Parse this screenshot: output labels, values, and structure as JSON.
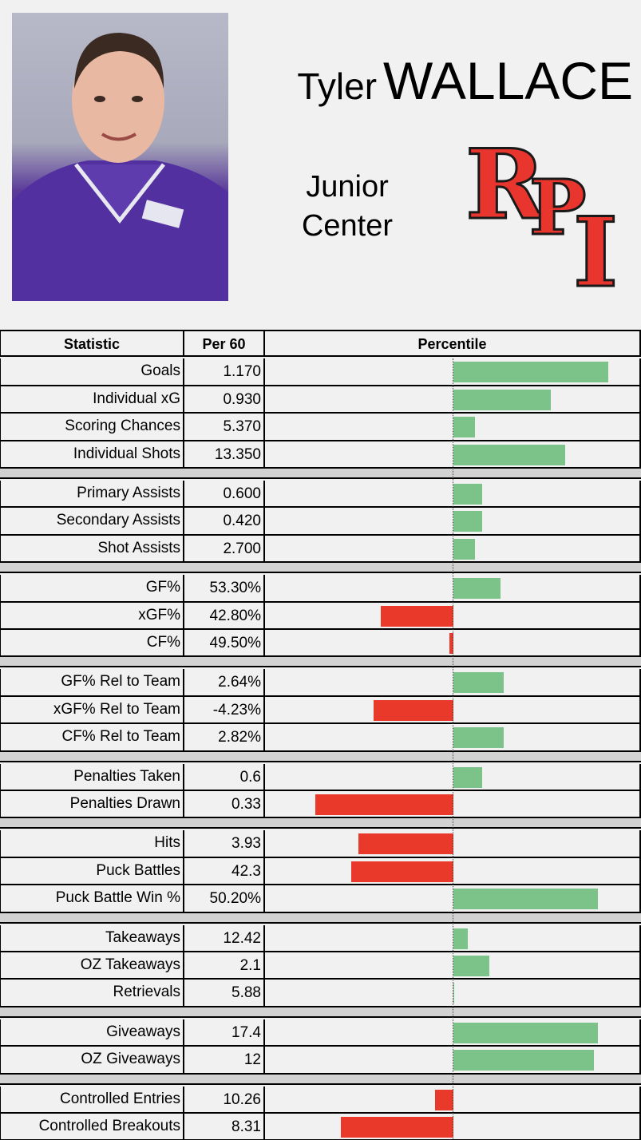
{
  "player": {
    "first_name": "Tyler",
    "last_name": "WALLACE",
    "year": "Junior",
    "position": "Center",
    "team_logo_text": "RPI"
  },
  "table": {
    "headers": [
      "Statistic",
      "Per 60",
      "Percentile"
    ]
  },
  "chart_data": {
    "type": "bar",
    "orientation": "horizontal",
    "columns": [
      "Statistic",
      "Per 60",
      "Percentile"
    ],
    "percentile_range": [
      0,
      100
    ],
    "midpoint": 50,
    "colors": {
      "above": "#7cc38a",
      "below": "#e8392b"
    },
    "groups": [
      [
        {
          "stat": "Goals",
          "per60": "1.170",
          "percentile": 93
        },
        {
          "stat": "Individual xG",
          "per60": "0.930",
          "percentile": 77
        },
        {
          "stat": "Scoring Chances",
          "per60": "5.370",
          "percentile": 56
        },
        {
          "stat": "Individual Shots",
          "per60": "13.350",
          "percentile": 81
        }
      ],
      [
        {
          "stat": "Primary Assists",
          "per60": "0.600",
          "percentile": 58
        },
        {
          "stat": "Secondary Assists",
          "per60": "0.420",
          "percentile": 58
        },
        {
          "stat": "Shot Assists",
          "per60": "2.700",
          "percentile": 56
        }
      ],
      [
        {
          "stat": "GF%",
          "per60": "53.30%",
          "percentile": 63
        },
        {
          "stat": "xGF%",
          "per60": "42.80%",
          "percentile": 30
        },
        {
          "stat": "CF%",
          "per60": "49.50%",
          "percentile": 49
        }
      ],
      [
        {
          "stat": "GF% Rel to Team",
          "per60": "2.64%",
          "percentile": 64
        },
        {
          "stat": "xGF% Rel to Team",
          "per60": "-4.23%",
          "percentile": 28
        },
        {
          "stat": "CF% Rel to Team",
          "per60": "2.82%",
          "percentile": 64
        }
      ],
      [
        {
          "stat": "Penalties Taken",
          "per60": "0.6",
          "percentile": 58
        },
        {
          "stat": "Penalties Drawn",
          "per60": "0.33",
          "percentile": 12
        }
      ],
      [
        {
          "stat": "Hits",
          "per60": "3.93",
          "percentile": 24
        },
        {
          "stat": "Puck Battles",
          "per60": "42.3",
          "percentile": 22
        },
        {
          "stat": "Puck Battle Win %",
          "per60": "50.20%",
          "percentile": 90
        }
      ],
      [
        {
          "stat": "Takeaways",
          "per60": "12.42",
          "percentile": 54
        },
        {
          "stat": "OZ Takeaways",
          "per60": "2.1",
          "percentile": 60
        },
        {
          "stat": "Retrievals",
          "per60": "5.88",
          "percentile": 50
        }
      ],
      [
        {
          "stat": "Giveaways",
          "per60": "17.4",
          "percentile": 90
        },
        {
          "stat": "OZ Giveaways",
          "per60": "12",
          "percentile": 89
        }
      ],
      [
        {
          "stat": "Controlled Entries",
          "per60": "10.26",
          "percentile": 45
        },
        {
          "stat": "Controlled Breakouts",
          "per60": "8.31",
          "percentile": 19
        }
      ]
    ]
  }
}
